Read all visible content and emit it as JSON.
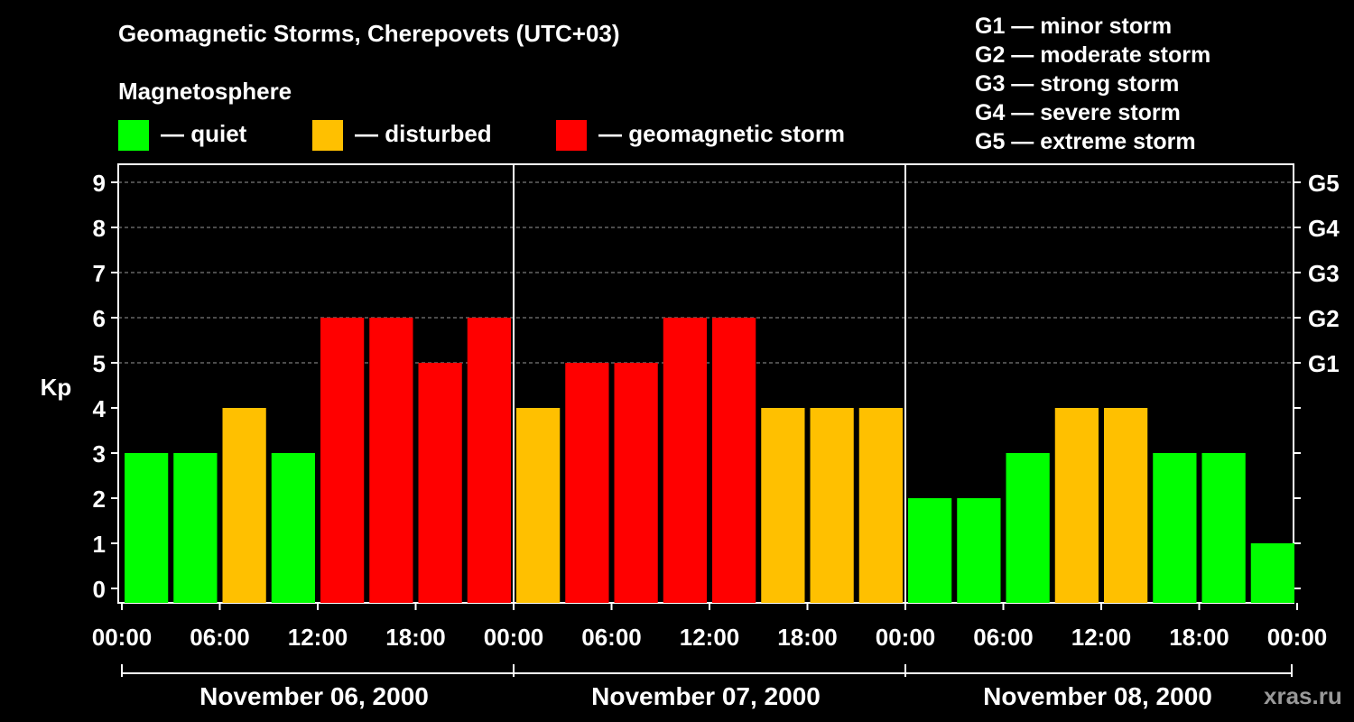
{
  "title": "Geomagnetic Storms, Cherepovets (UTC+03)",
  "legend": {
    "heading": "Magnetosphere",
    "items": [
      {
        "label": "— quiet",
        "color": "#00ff00"
      },
      {
        "label": "— disturbed",
        "color": "#ffc000"
      },
      {
        "label": "— geomagnetic storm",
        "color": "#ff0000"
      }
    ]
  },
  "g_scale": [
    {
      "label": "G1 — minor storm"
    },
    {
      "label": "G2 — moderate storm"
    },
    {
      "label": "G3 — strong storm"
    },
    {
      "label": "G4 — severe storm"
    },
    {
      "label": "G5 — extreme storm"
    }
  ],
  "watermark": "xras.ru",
  "chart_data": {
    "type": "bar",
    "ylabel": "Kp",
    "ylim": [
      0,
      9
    ],
    "y_ticks": [
      0,
      1,
      2,
      3,
      4,
      5,
      6,
      7,
      8,
      9
    ],
    "right_axis": [
      {
        "label": "G1",
        "kp": 5
      },
      {
        "label": "G2",
        "kp": 6
      },
      {
        "label": "G3",
        "kp": 7
      },
      {
        "label": "G4",
        "kp": 8
      },
      {
        "label": "G5",
        "kp": 9
      }
    ],
    "grid": true,
    "x_tick_labels": [
      "00:00",
      "06:00",
      "12:00",
      "18:00",
      "00:00",
      "06:00",
      "12:00",
      "18:00",
      "00:00",
      "06:00",
      "12:00",
      "18:00",
      "00:00"
    ],
    "days": [
      "November 06, 2000",
      "November 07, 2000",
      "November 08, 2000"
    ],
    "interval_hours": 3,
    "values": [
      3,
      3,
      4,
      3,
      6,
      6,
      5,
      6,
      4,
      5,
      5,
      6,
      6,
      4,
      4,
      4,
      2,
      2,
      3,
      4,
      4,
      3,
      3,
      1
    ],
    "level_colors": {
      "quiet": "#00ff00",
      "disturbed": "#ffc000",
      "storm": "#ff0000"
    }
  }
}
